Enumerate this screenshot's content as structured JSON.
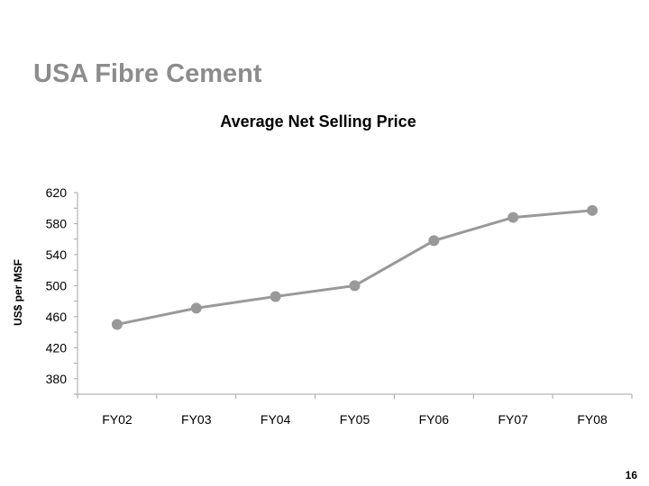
{
  "slide": {
    "title": "USA Fibre Cement",
    "page_number": "16"
  },
  "chart_data": {
    "type": "line",
    "title": "Average Net Selling Price",
    "xlabel": "",
    "ylabel": "US$ per MSF",
    "categories": [
      "FY02",
      "FY03",
      "FY04",
      "FY05",
      "FY06",
      "FY07",
      "FY08"
    ],
    "series": [
      {
        "values": [
          450,
          471,
          486,
          500,
          558,
          588,
          597
        ]
      }
    ],
    "ylim": [
      360,
      620
    ],
    "yticks": [
      380,
      420,
      460,
      500,
      540,
      580,
      620
    ],
    "ytick_labels": [
      "380",
      "420",
      "460",
      "500",
      "540",
      "580",
      "620"
    ],
    "grid": false,
    "legend": "none",
    "colors": {
      "line": "#999999",
      "marker": "#999999",
      "axis": "#a6a6a6",
      "title": "#8c8c8c"
    }
  }
}
